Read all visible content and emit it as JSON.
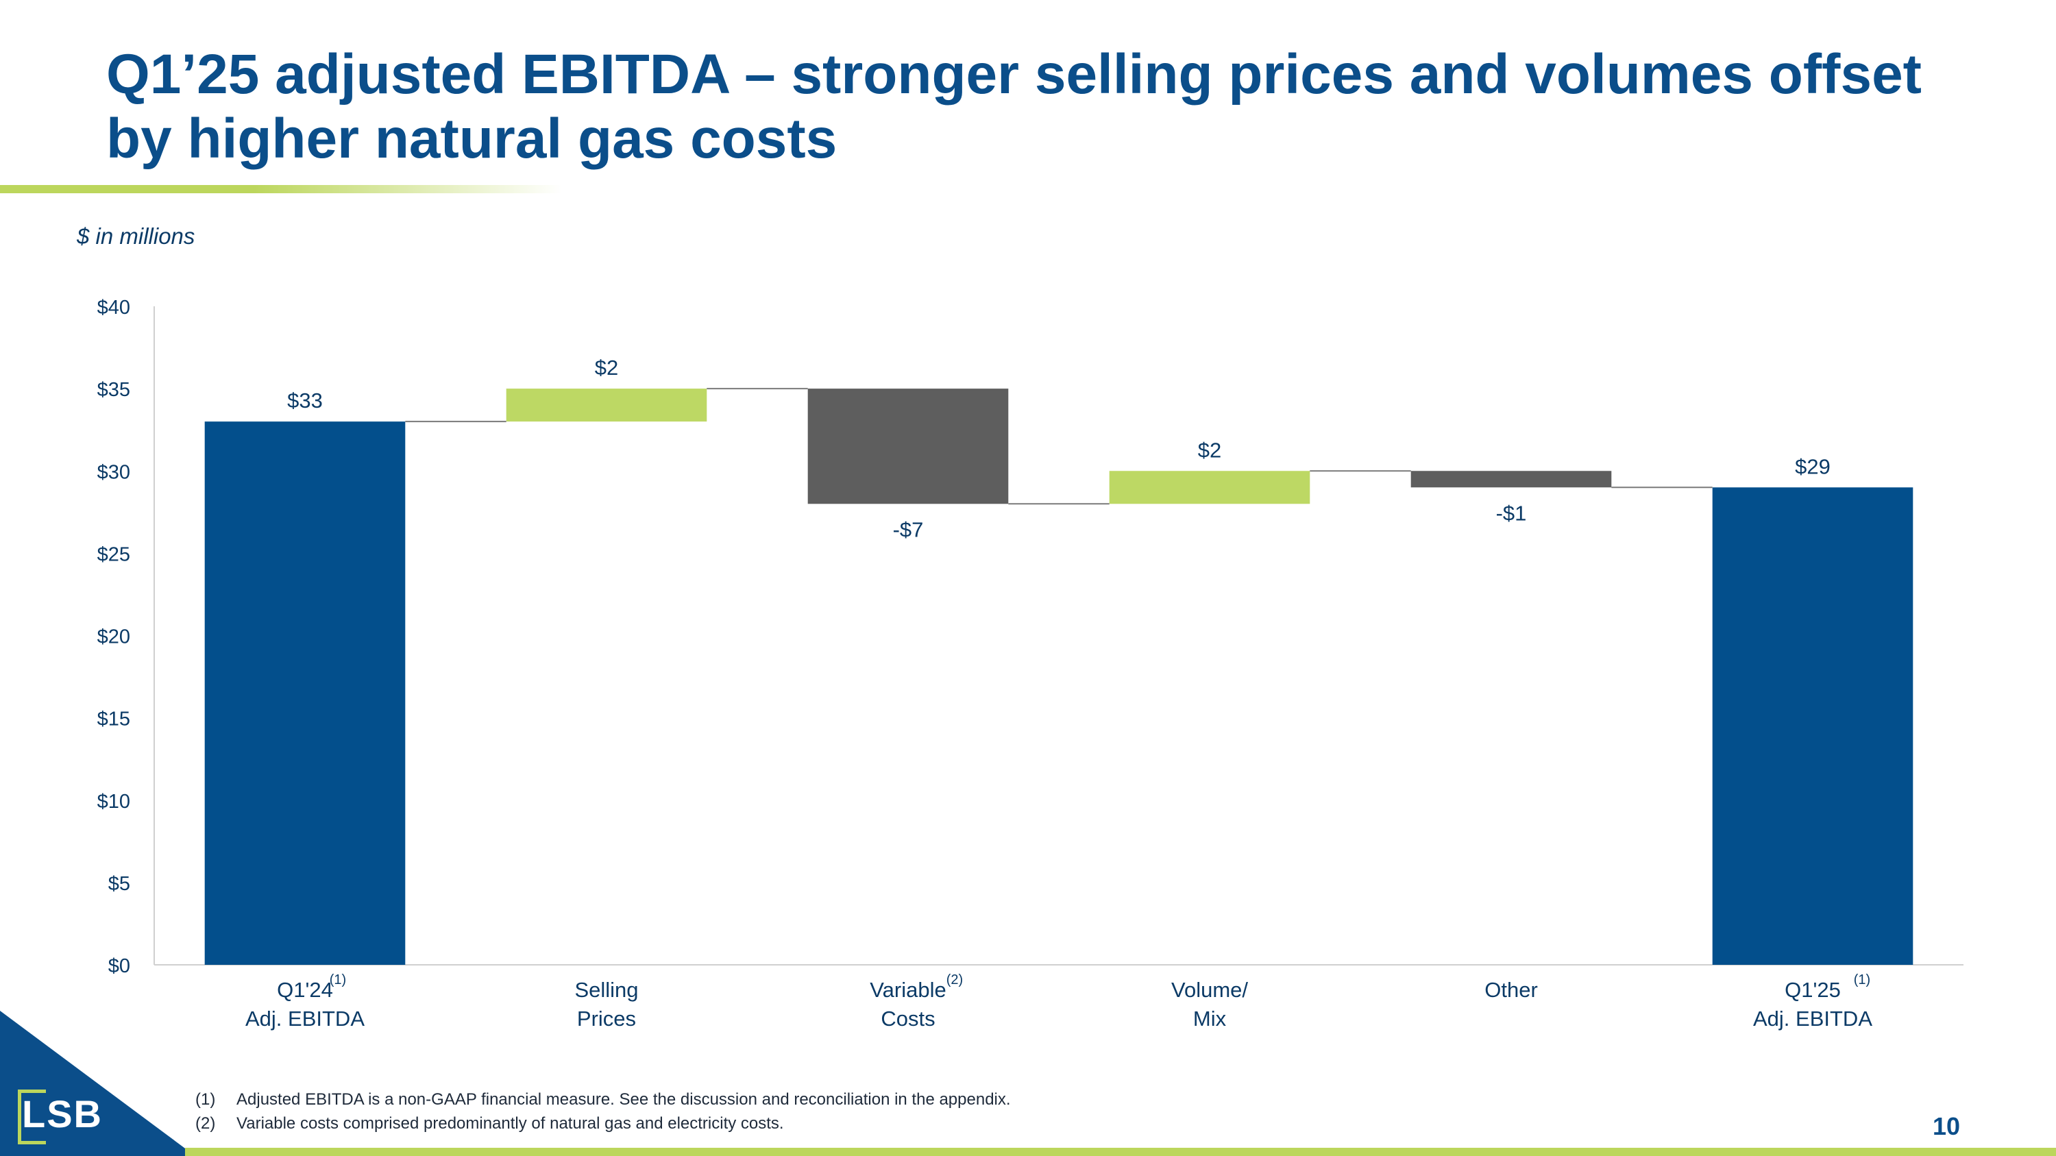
{
  "slide": {
    "title": "Q1’25 adjusted EBITDA – stronger selling prices and volumes offset by higher natural gas costs",
    "units_note": "$ in millions",
    "page_number": "10",
    "logo_text": "LSB"
  },
  "footnotes": [
    {
      "num": "(1)",
      "text": "Adjusted EBITDA is a non-GAAP financial measure.  See the discussion and reconciliation in the appendix."
    },
    {
      "num": "(2)",
      "text": "Variable costs comprised predominantly of natural gas and electricity costs."
    }
  ],
  "chart_data": {
    "type": "bar",
    "subtype": "waterfall",
    "y_ticks": [
      "$0",
      "$5",
      "$10",
      "$15",
      "$20",
      "$25",
      "$30",
      "$35",
      "$40"
    ],
    "ylim": [
      0,
      40
    ],
    "grid": false,
    "categories": [
      {
        "label_lines": [
          "Q1'24",
          "Adj. EBITDA"
        ],
        "superscript": "(1)",
        "kind": "total",
        "value": 33,
        "data_label": "$33"
      },
      {
        "label_lines": [
          "Selling",
          "Prices"
        ],
        "superscript": "",
        "kind": "increase",
        "value": 2,
        "data_label": "$2"
      },
      {
        "label_lines": [
          "Variable",
          "Costs"
        ],
        "superscript": "(2)",
        "kind": "decrease",
        "value": -7,
        "data_label": "-$7"
      },
      {
        "label_lines": [
          "Volume/",
          "Mix"
        ],
        "superscript": "",
        "kind": "increase",
        "value": 2,
        "data_label": "$2"
      },
      {
        "label_lines": [
          "Other",
          ""
        ],
        "superscript": "",
        "kind": "decrease",
        "value": -1,
        "data_label": "-$1"
      },
      {
        "label_lines": [
          "Q1'25",
          "Adj. EBITDA"
        ],
        "superscript": "(1)",
        "kind": "total",
        "value": 29,
        "data_label": "$29"
      }
    ],
    "colors": {
      "total": "#034f8c",
      "increase": "#bdd864",
      "decrease": "#5e5e5e",
      "text": "#0b3a66",
      "axis": "#d0d0d0",
      "connector": "#7a7a7a"
    }
  }
}
